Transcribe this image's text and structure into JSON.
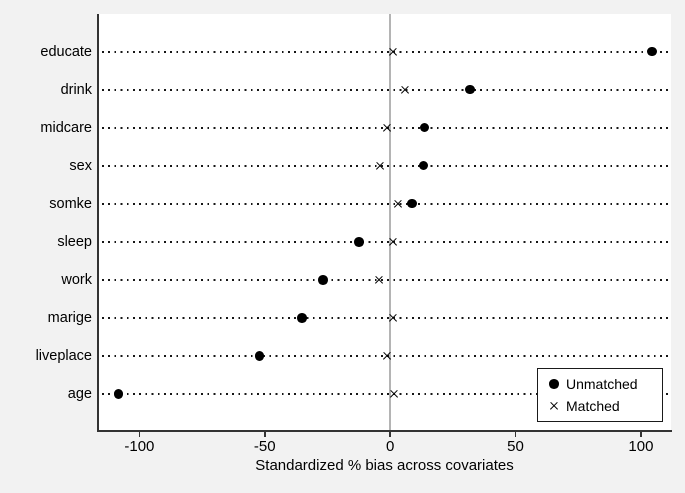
{
  "chart_data": {
    "type": "scatter",
    "subtype": "horizontal-dot-plot",
    "title": "",
    "xlabel": "Standardized % bias across covariates",
    "ylabel": "",
    "categories": [
      "educate",
      "drink",
      "midcare",
      "sex",
      "somke",
      "sleep",
      "work",
      "marige",
      "liveplace",
      "age"
    ],
    "series": [
      {
        "name": "Unmatched",
        "marker": "circle",
        "values": [
          104.4,
          31.8,
          13.7,
          13.3,
          8.7,
          -12.5,
          -26.8,
          -35.2,
          -52.1,
          -108.4
        ]
      },
      {
        "name": "Matched",
        "marker": "x",
        "values": [
          1.3,
          6.0,
          -1.1,
          -4.0,
          3.3,
          1.0,
          -4.3,
          1.3,
          -1.1,
          1.6
        ]
      }
    ],
    "xticks": [
      -100,
      -50,
      0,
      50,
      100
    ],
    "xtick_labels": [
      "-100",
      "-50",
      "0",
      "50",
      "100"
    ],
    "xlim": [
      -116.5,
      112
    ],
    "zero_reference_line": 0,
    "grid": "dotted-horizontal-rows",
    "legend_position": "bottom-right-inside",
    "colors": {
      "marker": "#000000",
      "zero_line": "#b4b4b4",
      "background": "#f2f2f2",
      "plot_background": "#ffffff",
      "axis": "#333333",
      "legend_border": "#1a1a1a"
    }
  }
}
